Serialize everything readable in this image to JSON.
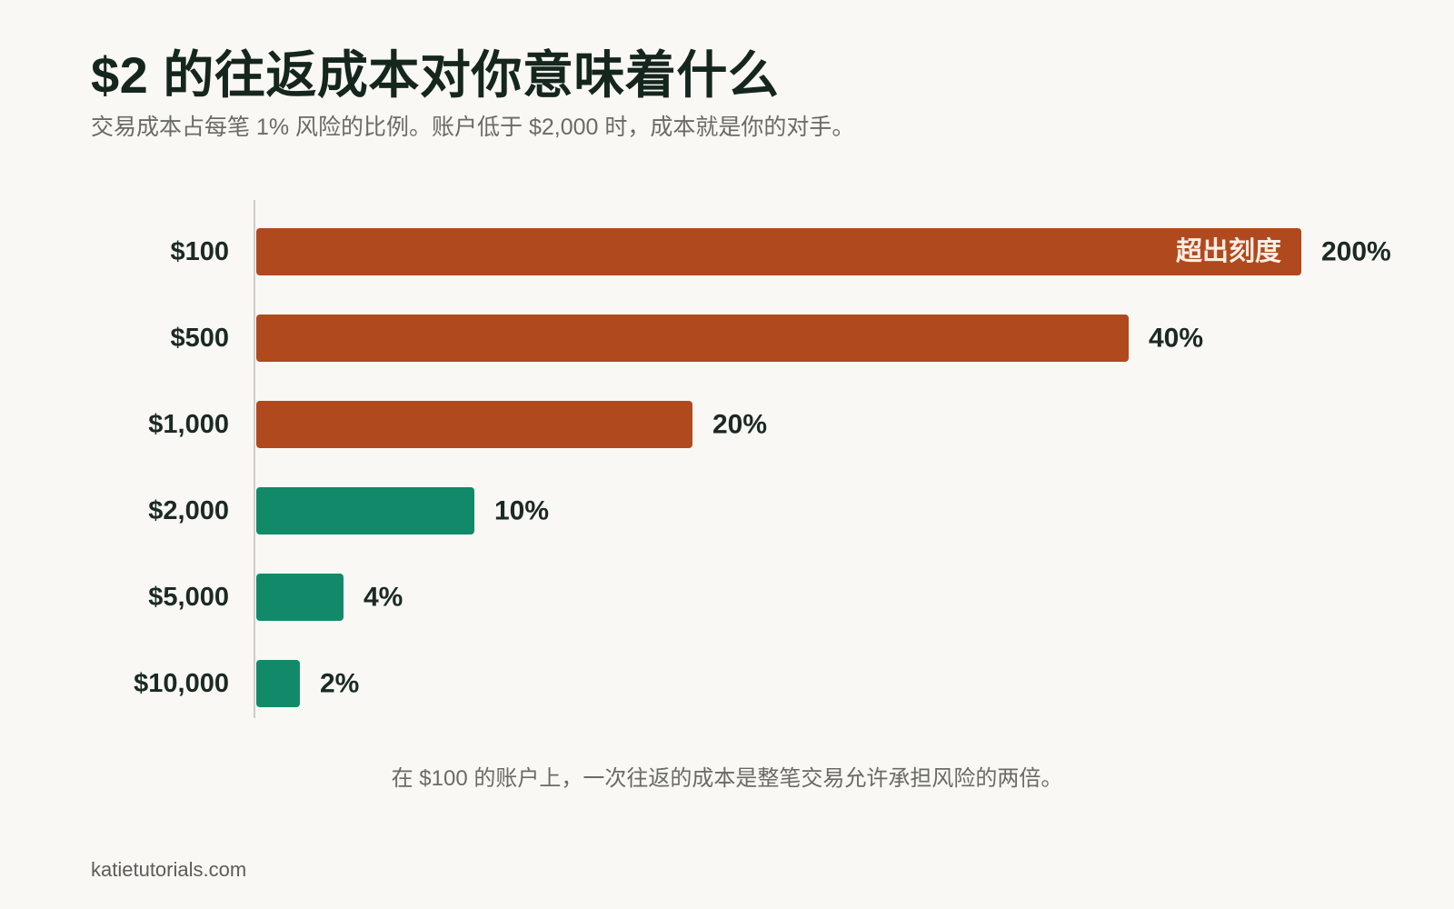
{
  "header": {
    "title": "$2 的往返成本对你意味着什么",
    "subtitle": "交易成本占每笔 1% 风险的比例。账户低于 $2,000 时，成本就是你的对手。"
  },
  "note": "在 $100 的账户上，一次往返的成本是整笔交易允许承担风险的两倍。",
  "footer": {
    "site": "katietutorials.com"
  },
  "colors": {
    "high_cost": "#b1491f",
    "low_cost": "#128a69",
    "axis": "#cfcdc6",
    "label": "#1b2a22",
    "overflow_text": "#fbeee4"
  },
  "chart_data": {
    "type": "bar",
    "orientation": "horizontal",
    "categories": [
      "$100",
      "$500",
      "$1,000",
      "$2,000",
      "$5,000",
      "$10,000"
    ],
    "values": [
      200,
      40,
      20,
      10,
      4,
      2
    ],
    "value_labels": [
      "200%",
      "40%",
      "20%",
      "10%",
      "4%",
      "2%"
    ],
    "scale_max": 40,
    "clipped": [
      true,
      false,
      false,
      false,
      false,
      false
    ],
    "clip_label": "超出刻度",
    "bar_colors": [
      "high_cost",
      "high_cost",
      "high_cost",
      "low_cost",
      "low_cost",
      "low_cost"
    ],
    "grid": false,
    "legend": "none"
  }
}
